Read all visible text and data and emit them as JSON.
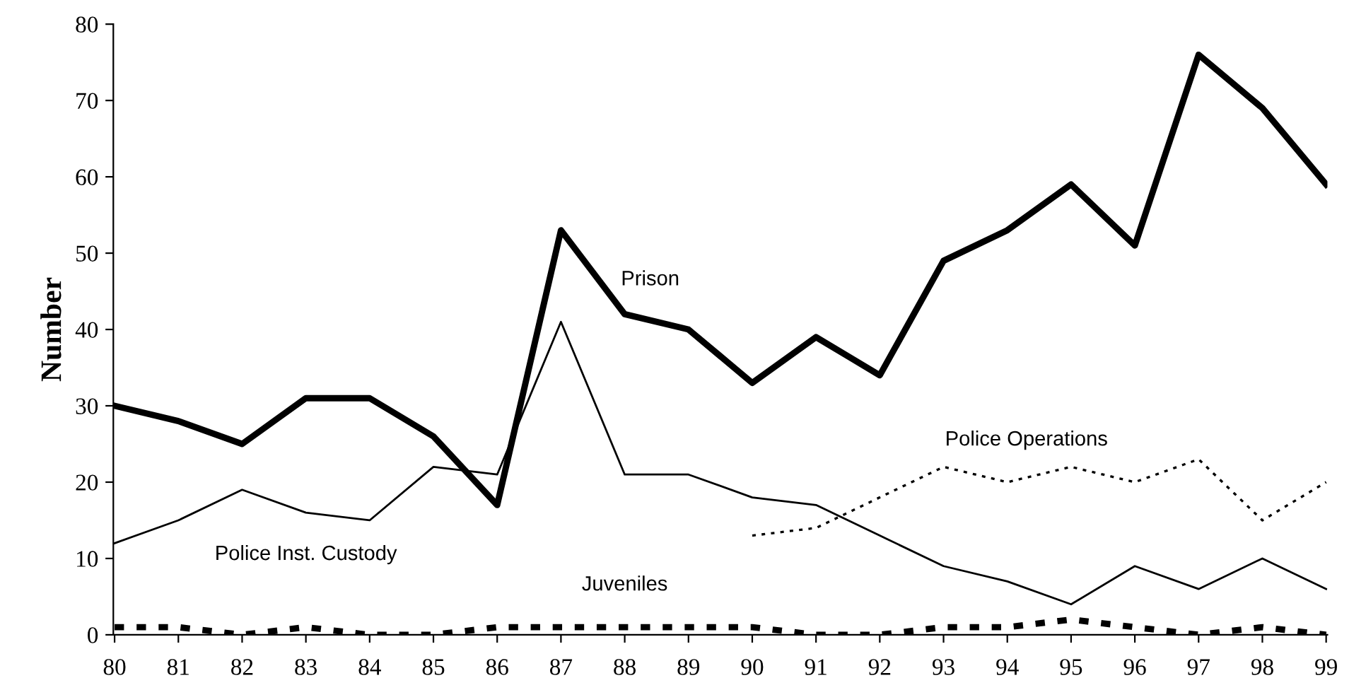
{
  "chart_data": {
    "type": "line",
    "ylabel": "Number",
    "categories": [
      "80",
      "81",
      "82",
      "83",
      "84",
      "85",
      "86",
      "87",
      "88",
      "89",
      "90",
      "91",
      "92",
      "93",
      "94",
      "95",
      "96",
      "97",
      "98",
      "99"
    ],
    "ylim": [
      0,
      80
    ],
    "yticks": [
      0,
      10,
      20,
      30,
      40,
      50,
      60,
      70,
      80
    ],
    "grid": false,
    "legend": false,
    "marker": "none",
    "series": [
      {
        "name": "Prison",
        "color": "#000000",
        "line_style": "solid",
        "values": [
          30,
          28,
          25,
          31,
          31,
          26,
          17,
          53,
          42,
          40,
          33,
          39,
          34,
          49,
          53,
          59,
          51,
          76,
          69,
          59
        ]
      },
      {
        "name": "Police Inst. Custody",
        "color": "#000000",
        "line_style": "solid",
        "values": [
          12,
          15,
          19,
          16,
          15,
          22,
          21,
          41,
          21,
          21,
          18,
          17,
          13,
          9,
          7,
          4,
          9,
          6,
          10,
          6
        ]
      },
      {
        "name": "Police Operations",
        "color": "#000000",
        "line_style": "dotted",
        "values": [
          null,
          null,
          null,
          null,
          null,
          null,
          null,
          null,
          null,
          null,
          13,
          14,
          18,
          22,
          20,
          22,
          20,
          23,
          15,
          20
        ]
      },
      {
        "name": "Juveniles",
        "color": "#000000",
        "line_style": "dashed",
        "values": [
          1,
          1,
          0,
          1,
          0,
          0,
          1,
          1,
          1,
          1,
          1,
          0,
          0,
          1,
          1,
          2,
          1,
          0,
          1,
          0
        ]
      }
    ]
  }
}
